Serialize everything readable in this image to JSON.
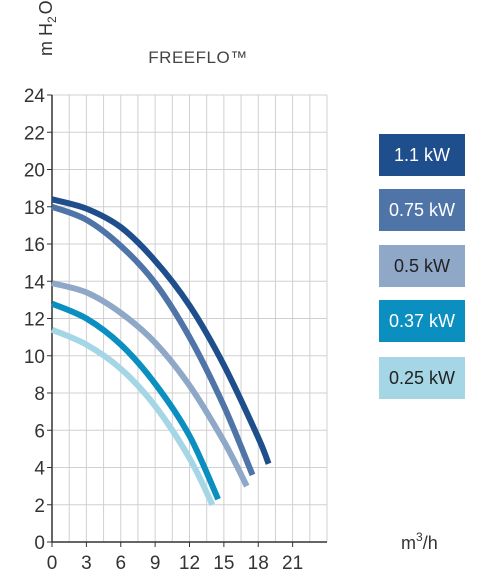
{
  "chart_data": {
    "type": "line",
    "title": "FREEFLO™",
    "ylabel": "m H2O",
    "ylabel_parts": {
      "main": "m H",
      "sub": "2",
      "end": "O"
    },
    "xlabel_parts": {
      "main": "m",
      "sup": "3",
      "end": "/h"
    },
    "xlim": [
      0,
      24
    ],
    "ylim": [
      0,
      24
    ],
    "xticks": [
      0,
      3,
      6,
      9,
      12,
      15,
      18,
      21
    ],
    "yticks": [
      0,
      2,
      4,
      6,
      8,
      10,
      12,
      14,
      16,
      18,
      20,
      22,
      24
    ],
    "grid": true,
    "legend_position": "right",
    "series": [
      {
        "name": "1.1 kW",
        "color": "#1f4e8c",
        "text_color": "#ffffff",
        "x": [
          0,
          3,
          6,
          9,
          12,
          15,
          18,
          18.9
        ],
        "y": [
          18.4,
          17.9,
          16.9,
          15.1,
          12.7,
          9.5,
          5.6,
          4.2
        ]
      },
      {
        "name": "0.75 kW",
        "color": "#4f74a8",
        "text_color": "#ffffff",
        "x": [
          0,
          3,
          6,
          9,
          12,
          15,
          17.5
        ],
        "y": [
          18.0,
          17.3,
          15.9,
          13.9,
          11.0,
          7.3,
          3.6
        ]
      },
      {
        "name": "0.5 kW",
        "color": "#8fa8c8",
        "text_color": "#222222",
        "x": [
          0,
          3,
          6,
          9,
          12,
          15,
          17.0
        ],
        "y": [
          13.9,
          13.4,
          12.3,
          10.7,
          8.4,
          5.4,
          3.0
        ]
      },
      {
        "name": "0.37 kW",
        "color": "#0b8fc0",
        "text_color": "#ffffff",
        "x": [
          0,
          3,
          6,
          9,
          12,
          14.5
        ],
        "y": [
          12.8,
          12.0,
          10.6,
          8.5,
          5.7,
          2.3
        ]
      },
      {
        "name": "0.25 kW",
        "color": "#a4d6e6",
        "text_color": "#222222",
        "x": [
          0,
          3,
          6,
          9,
          12,
          14.0
        ],
        "y": [
          11.4,
          10.6,
          9.3,
          7.3,
          4.5,
          2.0
        ]
      }
    ]
  }
}
